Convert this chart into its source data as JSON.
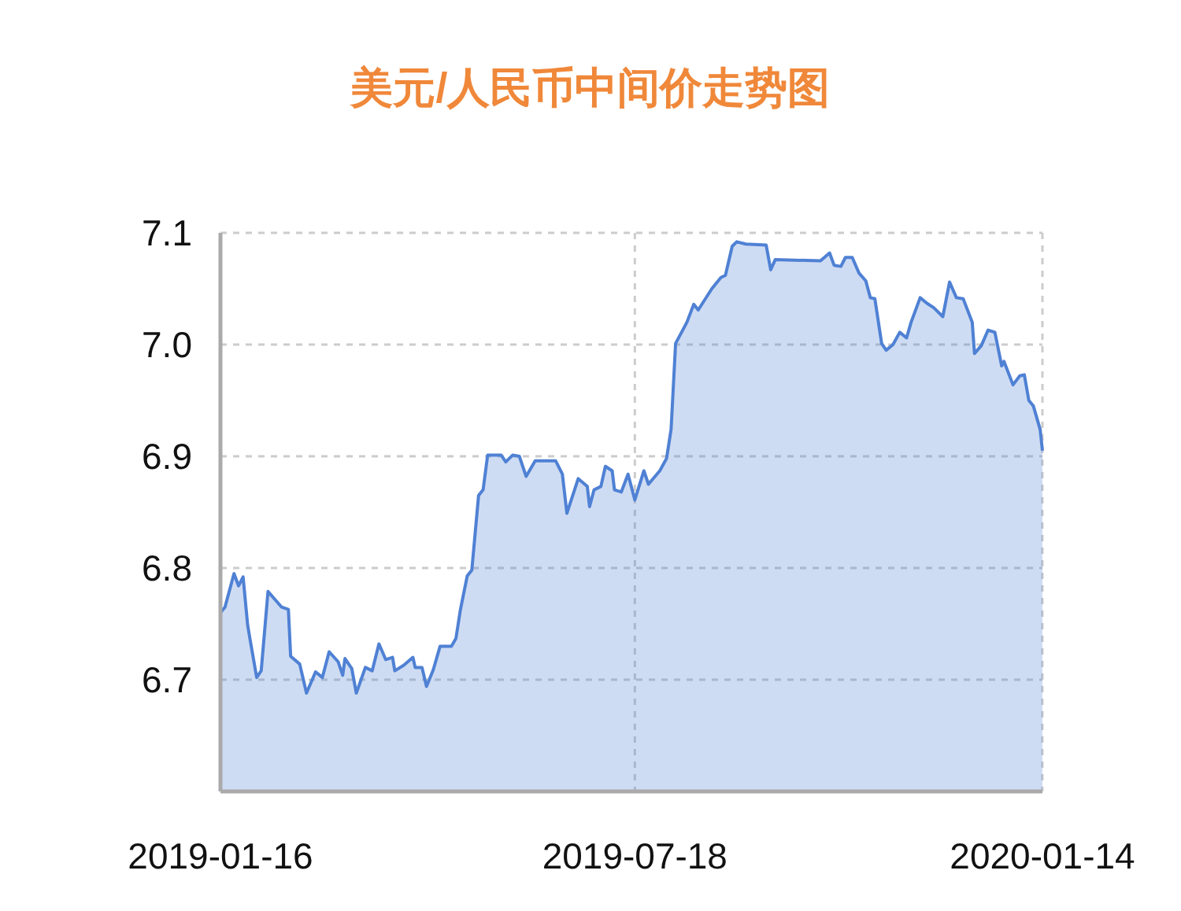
{
  "chart_data": {
    "type": "area",
    "title": "美元/人民币中间价走势图",
    "x": [
      "2019-01-16",
      "2019-01-18",
      "2019-01-22",
      "2019-01-24",
      "2019-01-26",
      "2019-01-28",
      "2019-01-29",
      "2019-02-01",
      "2019-02-03",
      "2019-02-06",
      "2019-02-09",
      "2019-02-12",
      "2019-02-15",
      "2019-02-16",
      "2019-02-20",
      "2019-02-23",
      "2019-02-27",
      "2019-03-02",
      "2019-03-05",
      "2019-03-09",
      "2019-03-11",
      "2019-03-12",
      "2019-03-15",
      "2019-03-17",
      "2019-03-21",
      "2019-03-24",
      "2019-03-27",
      "2019-03-30",
      "2019-04-02",
      "2019-04-03",
      "2019-04-07",
      "2019-04-11",
      "2019-04-12",
      "2019-04-15",
      "2019-04-17",
      "2019-04-20",
      "2019-04-23",
      "2019-04-28",
      "2019-04-30",
      "2019-05-02",
      "2019-05-05",
      "2019-05-07",
      "2019-05-10",
      "2019-05-12",
      "2019-05-14",
      "2019-05-20",
      "2019-05-22",
      "2019-05-25",
      "2019-05-28",
      "2019-05-31",
      "2019-06-04",
      "2019-06-13",
      "2019-06-16",
      "2019-06-18",
      "2019-06-23",
      "2019-06-27",
      "2019-06-28",
      "2019-06-30",
      "2019-07-03",
      "2019-07-05",
      "2019-07-08",
      "2019-07-09",
      "2019-07-12",
      "2019-07-15",
      "2019-07-18",
      "2019-07-22",
      "2019-07-24",
      "2019-07-29",
      "2019-08-01",
      "2019-08-03",
      "2019-08-05",
      "2019-08-10",
      "2019-08-13",
      "2019-08-15",
      "2019-08-21",
      "2019-08-25",
      "2019-08-27",
      "2019-08-30",
      "2019-09-01",
      "2019-09-05",
      "2019-09-14",
      "2019-09-16",
      "2019-09-18",
      "2019-10-08",
      "2019-10-12",
      "2019-10-14",
      "2019-10-17",
      "2019-10-19",
      "2019-10-22",
      "2019-10-25",
      "2019-10-28",
      "2019-10-30",
      "2019-11-01",
      "2019-11-04",
      "2019-11-06",
      "2019-11-09",
      "2019-11-12",
      "2019-11-15",
      "2019-11-17",
      "2019-11-21",
      "2019-11-24",
      "2019-11-27",
      "2019-12-01",
      "2019-12-04",
      "2019-12-07",
      "2019-12-10",
      "2019-12-14",
      "2019-12-15",
      "2019-12-18",
      "2019-12-21",
      "2019-12-24",
      "2019-12-27",
      "2019-12-28",
      "2020-01-01",
      "2020-01-04",
      "2020-01-06",
      "2020-01-08",
      "2020-01-10",
      "2020-01-13",
      "2020-01-14"
    ],
    "series": [
      {
        "color": "#4f81d4",
        "values": [
          6.76,
          6.765,
          6.795,
          6.784,
          6.792,
          6.749,
          6.737,
          6.702,
          6.708,
          6.779,
          6.772,
          6.765,
          6.763,
          6.721,
          6.714,
          6.688,
          6.707,
          6.702,
          6.725,
          6.716,
          6.704,
          6.719,
          6.71,
          6.688,
          6.711,
          6.708,
          6.732,
          6.718,
          6.72,
          6.708,
          6.713,
          6.72,
          6.711,
          6.711,
          6.694,
          6.709,
          6.73,
          6.73,
          6.737,
          6.763,
          6.793,
          6.798,
          6.865,
          6.87,
          6.901,
          6.901,
          6.895,
          6.901,
          6.9,
          6.882,
          6.896,
          6.896,
          6.884,
          6.849,
          6.88,
          6.873,
          6.855,
          6.87,
          6.873,
          6.891,
          6.887,
          6.87,
          6.868,
          6.884,
          6.861,
          6.887,
          6.875,
          6.887,
          6.898,
          6.924,
          7.001,
          7.02,
          7.036,
          7.031,
          7.05,
          7.06,
          7.062,
          7.088,
          7.092,
          7.09,
          7.089,
          7.067,
          7.076,
          7.075,
          7.082,
          7.071,
          7.07,
          7.078,
          7.078,
          7.064,
          7.057,
          7.042,
          7.041,
          7.001,
          6.995,
          7.0,
          7.011,
          7.006,
          7.02,
          7.042,
          7.037,
          7.033,
          7.025,
          7.056,
          7.042,
          7.041,
          7.02,
          6.992,
          6.999,
          7.013,
          7.011,
          6.981,
          6.985,
          6.964,
          6.972,
          6.973,
          6.95,
          6.945,
          6.924,
          6.905
        ]
      }
    ],
    "xlim": [
      "2019-01-16",
      "2020-01-14"
    ],
    "xticks": [
      {
        "value": "2019-01-16",
        "label": "2019-01-16"
      },
      {
        "value": "2019-07-18",
        "label": "2019-07-18"
      },
      {
        "value": "2020-01-14",
        "label": "2020-01-14"
      }
    ],
    "ylim": [
      6.6,
      7.1
    ],
    "yticks": [
      {
        "value": 6.6,
        "label": null
      },
      {
        "value": 6.7,
        "label": "6.7"
      },
      {
        "value": 6.8,
        "label": "6.8"
      },
      {
        "value": 6.9,
        "label": "6.9"
      },
      {
        "value": 7.0,
        "label": "7.0"
      },
      {
        "value": 7.1,
        "label": "7.1"
      }
    ],
    "grid": true,
    "line_style": "solid",
    "marker": "none"
  }
}
